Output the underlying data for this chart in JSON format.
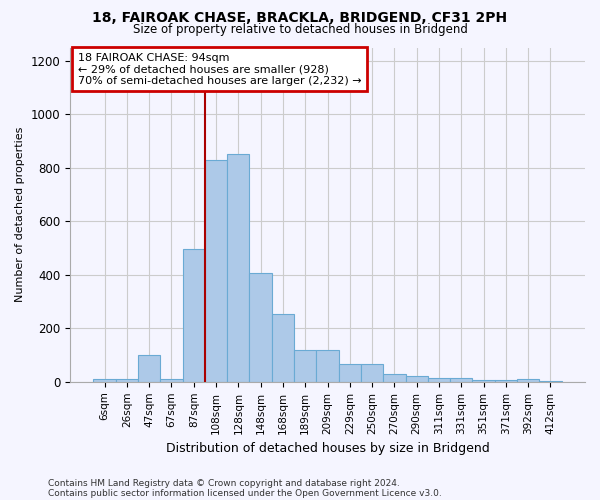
{
  "title_line1": "18, FAIROAK CHASE, BRACKLA, BRIDGEND, CF31 2PH",
  "title_line2": "Size of property relative to detached houses in Bridgend",
  "xlabel": "Distribution of detached houses by size in Bridgend",
  "ylabel": "Number of detached properties",
  "categories": [
    "6sqm",
    "26sqm",
    "47sqm",
    "67sqm",
    "87sqm",
    "108sqm",
    "128sqm",
    "148sqm",
    "168sqm",
    "189sqm",
    "209sqm",
    "229sqm",
    "250sqm",
    "270sqm",
    "290sqm",
    "311sqm",
    "331sqm",
    "351sqm",
    "371sqm",
    "392sqm",
    "412sqm"
  ],
  "values": [
    10,
    12,
    100,
    12,
    495,
    830,
    850,
    405,
    255,
    120,
    120,
    65,
    65,
    30,
    20,
    13,
    13,
    8,
    8,
    12,
    2
  ],
  "bar_color": "#adc9e8",
  "bar_edge_color": "#6aaad4",
  "vline_x_index": 4,
  "vline_color": "#aa0000",
  "annotation_text": "18 FAIROAK CHASE: 94sqm\n← 29% of detached houses are smaller (928)\n70% of semi-detached houses are larger (2,232) →",
  "annotation_box_color": "#ffffff",
  "annotation_box_edge": "#cc0000",
  "ylim": [
    0,
    1250
  ],
  "yticks": [
    0,
    200,
    400,
    600,
    800,
    1000,
    1200
  ],
  "footer_line1": "Contains HM Land Registry data © Crown copyright and database right 2024.",
  "footer_line2": "Contains public sector information licensed under the Open Government Licence v3.0.",
  "bg_color": "#f5f5ff",
  "grid_color": "#cccccc"
}
